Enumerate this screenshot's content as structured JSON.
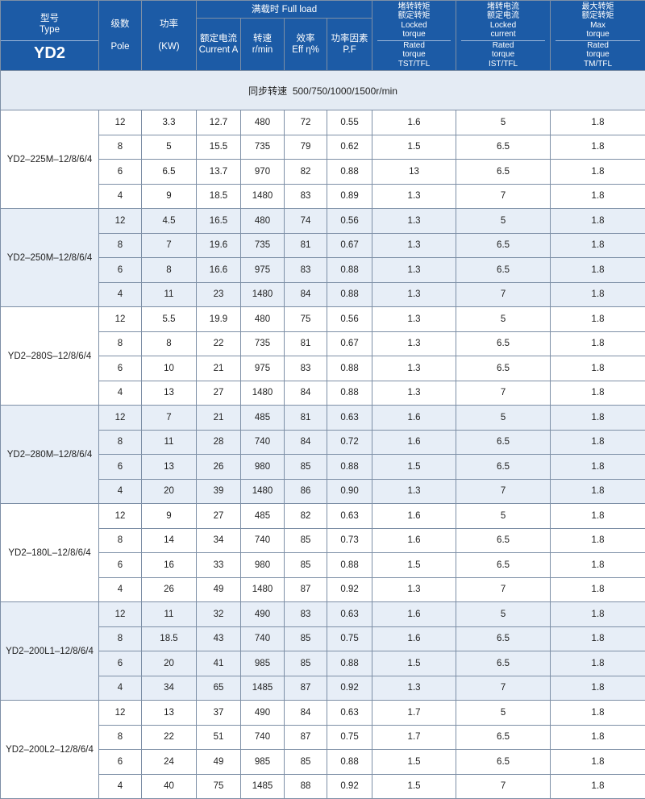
{
  "header": {
    "type_cn": "型号",
    "type_en": "Type",
    "series": "YD2",
    "pole_cn": "级数",
    "pole_en": "Pole",
    "power_cn": "功率",
    "power_en": "(KW)",
    "full_load": "满载时 Full load",
    "current_cn": "额定电流",
    "current_en": "Current A",
    "speed_cn": "转速",
    "speed_en": "r/min",
    "eff_cn": "效率",
    "eff_en": "Eff η%",
    "pf_cn": "功率因素",
    "pf_en": "P.F",
    "tst_cn1": "堵转转矩",
    "tst_cn2": "额定转矩",
    "tst_en1": "Locked",
    "tst_en2": "torque",
    "tst_en3": "Rated",
    "tst_en4": "torque",
    "tst_en5": "TST/TFL",
    "ist_cn1": "堵转电流",
    "ist_cn2": "额定电流",
    "ist_en1": "Locked",
    "ist_en2": "current",
    "ist_en3": "Rated",
    "ist_en4": "torque",
    "ist_en5": "IST/TFL",
    "tm_cn1": "最大转矩",
    "tm_cn2": "额定转矩",
    "tm_en1": "Max",
    "tm_en2": "torque",
    "tm_en3": "Rated",
    "tm_en4": "torque",
    "tm_en5": "TM/TFL"
  },
  "sync_speed": {
    "label": "同步转速",
    "value": "500/750/1000/1500r/min"
  },
  "groups": [
    {
      "model": "YD2–225M–12/8/6/4",
      "rows": [
        [
          "12",
          "3.3",
          "12.7",
          "480",
          "72",
          "0.55",
          "1.6",
          "5",
          "1.8"
        ],
        [
          "8",
          "5",
          "15.5",
          "735",
          "79",
          "0.62",
          "1.5",
          "6.5",
          "1.8"
        ],
        [
          "6",
          "6.5",
          "13.7",
          "970",
          "82",
          "0.88",
          "13",
          "6.5",
          "1.8"
        ],
        [
          "4",
          "9",
          "18.5",
          "1480",
          "83",
          "0.89",
          "1.3",
          "7",
          "1.8"
        ]
      ]
    },
    {
      "model": "YD2–250M–12/8/6/4",
      "rows": [
        [
          "12",
          "4.5",
          "16.5",
          "480",
          "74",
          "0.56",
          "1.3",
          "5",
          "1.8"
        ],
        [
          "8",
          "7",
          "19.6",
          "735",
          "81",
          "0.67",
          "1.3",
          "6.5",
          "1.8"
        ],
        [
          "6",
          "8",
          "16.6",
          "975",
          "83",
          "0.88",
          "1.3",
          "6.5",
          "1.8"
        ],
        [
          "4",
          "11",
          "23",
          "1480",
          "84",
          "0.88",
          "1.3",
          "7",
          "1.8"
        ]
      ]
    },
    {
      "model": "YD2–280S–12/8/6/4",
      "rows": [
        [
          "12",
          "5.5",
          "19.9",
          "480",
          "75",
          "0.56",
          "1.3",
          "5",
          "1.8"
        ],
        [
          "8",
          "8",
          "22",
          "735",
          "81",
          "0.67",
          "1.3",
          "6.5",
          "1.8"
        ],
        [
          "6",
          "10",
          "21",
          "975",
          "83",
          "0.88",
          "1.3",
          "6.5",
          "1.8"
        ],
        [
          "4",
          "13",
          "27",
          "1480",
          "84",
          "0.88",
          "1.3",
          "7",
          "1.8"
        ]
      ]
    },
    {
      "model": "YD2–280M–12/8/6/4",
      "rows": [
        [
          "12",
          "7",
          "21",
          "485",
          "81",
          "0.63",
          "1.6",
          "5",
          "1.8"
        ],
        [
          "8",
          "11",
          "28",
          "740",
          "84",
          "0.72",
          "1.6",
          "6.5",
          "1.8"
        ],
        [
          "6",
          "13",
          "26",
          "980",
          "85",
          "0.88",
          "1.5",
          "6.5",
          "1.8"
        ],
        [
          "4",
          "20",
          "39",
          "1480",
          "86",
          "0.90",
          "1.3",
          "7",
          "1.8"
        ]
      ]
    },
    {
      "model": "YD2–180L–12/8/6/4",
      "rows": [
        [
          "12",
          "9",
          "27",
          "485",
          "82",
          "0.63",
          "1.6",
          "5",
          "1.8"
        ],
        [
          "8",
          "14",
          "34",
          "740",
          "85",
          "0.73",
          "1.6",
          "6.5",
          "1.8"
        ],
        [
          "6",
          "16",
          "33",
          "980",
          "85",
          "0.88",
          "1.5",
          "6.5",
          "1.8"
        ],
        [
          "4",
          "26",
          "49",
          "1480",
          "87",
          "0.92",
          "1.3",
          "7",
          "1.8"
        ]
      ]
    },
    {
      "model": "YD2–200L1–12/8/6/4",
      "rows": [
        [
          "12",
          "11",
          "32",
          "490",
          "83",
          "0.63",
          "1.6",
          "5",
          "1.8"
        ],
        [
          "8",
          "18.5",
          "43",
          "740",
          "85",
          "0.75",
          "1.6",
          "6.5",
          "1.8"
        ],
        [
          "6",
          "20",
          "41",
          "985",
          "85",
          "0.88",
          "1.5",
          "6.5",
          "1.8"
        ],
        [
          "4",
          "34",
          "65",
          "1485",
          "87",
          "0.92",
          "1.3",
          "7",
          "1.8"
        ]
      ]
    },
    {
      "model": "YD2–200L2–12/8/6/4",
      "rows": [
        [
          "12",
          "13",
          "37",
          "490",
          "84",
          "0.63",
          "1.7",
          "5",
          "1.8"
        ],
        [
          "8",
          "22",
          "51",
          "740",
          "87",
          "0.75",
          "1.7",
          "6.5",
          "1.8"
        ],
        [
          "6",
          "24",
          "49",
          "985",
          "85",
          "0.88",
          "1.5",
          "6.5",
          "1.8"
        ],
        [
          "4",
          "40",
          "75",
          "1485",
          "88",
          "0.92",
          "1.5",
          "7",
          "1.8"
        ]
      ]
    }
  ]
}
